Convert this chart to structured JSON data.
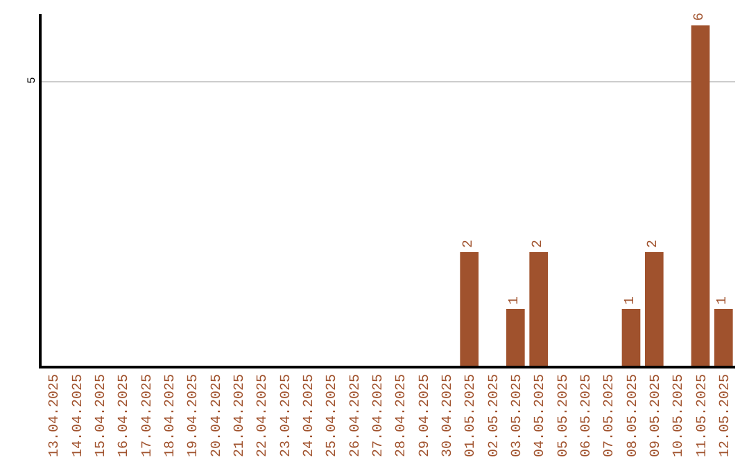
{
  "chart_data": {
    "type": "bar",
    "data_labels": true,
    "categories": [
      "13.04.2025",
      "14.04.2025",
      "15.04.2025",
      "16.04.2025",
      "17.04.2025",
      "18.04.2025",
      "19.04.2025",
      "20.04.2025",
      "21.04.2025",
      "22.04.2025",
      "23.04.2025",
      "24.04.2025",
      "25.04.2025",
      "26.04.2025",
      "27.04.2025",
      "28.04.2025",
      "29.04.2025",
      "30.04.2025",
      "01.05.2025",
      "02.05.2025",
      "03.05.2025",
      "04.05.2025",
      "05.05.2025",
      "06.05.2025",
      "07.05.2025",
      "08.05.2025",
      "09.05.2025",
      "10.05.2025",
      "11.05.2025",
      "12.05.2025"
    ],
    "values": [
      null,
      null,
      null,
      null,
      null,
      null,
      null,
      null,
      null,
      null,
      null,
      null,
      null,
      null,
      null,
      null,
      null,
      null,
      2,
      null,
      1,
      2,
      null,
      null,
      null,
      1,
      2,
      null,
      6,
      1
    ],
    "color": "#a0522d",
    "ylim": [
      0,
      6.2
    ],
    "yticks": [
      {
        "value": 0,
        "label": null
      },
      5
    ],
    "grid": "y",
    "legend": false
  }
}
